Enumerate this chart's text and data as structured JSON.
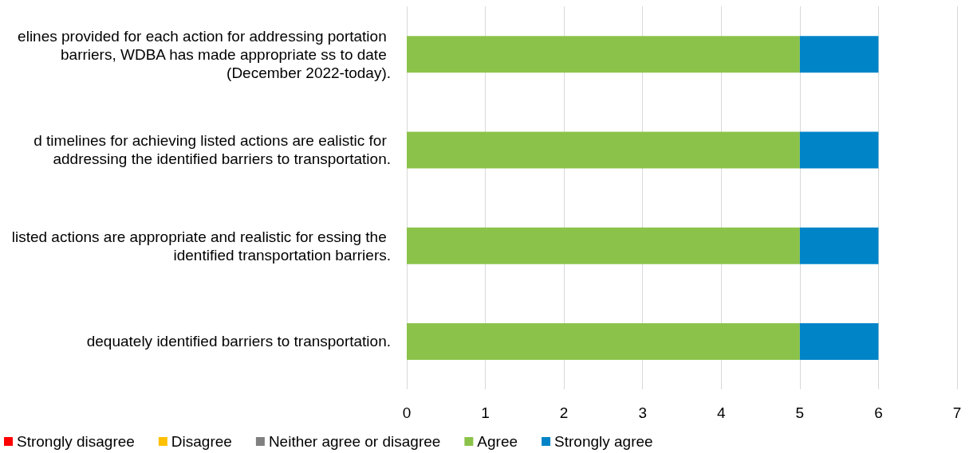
{
  "chart_data": {
    "type": "bar",
    "orientation": "horizontal",
    "stacked": true,
    "categories": [
      "elines provided for each action for addressing portation barriers, WDBA has made appropriate ss to date (December 2022-today).",
      "d timelines for achieving listed actions are ealistic for addressing the identified barriers to transportation.",
      "listed actions are appropriate and realistic for essing the identified transportation barriers.",
      "dequately identified barriers to transportation."
    ],
    "series": [
      {
        "name": "Strongly disagree",
        "color": "#ff0000",
        "values": [
          0,
          0,
          0,
          0
        ]
      },
      {
        "name": "Disagree",
        "color": "#ffc000",
        "values": [
          0,
          0,
          0,
          0
        ]
      },
      {
        "name": "Neither agree or disagree",
        "color": "#808080",
        "values": [
          0,
          0,
          0,
          0
        ]
      },
      {
        "name": "Agree",
        "color": "#8bc34a",
        "values": [
          5,
          5,
          5,
          5
        ]
      },
      {
        "name": "Strongly agree",
        "color": "#0084c8",
        "values": [
          1,
          1,
          1,
          1
        ]
      }
    ],
    "xlim": [
      0,
      7
    ],
    "xticks": [
      0,
      1,
      2,
      3,
      4,
      5,
      6,
      7
    ],
    "grid": "x",
    "legend": "bottom"
  }
}
